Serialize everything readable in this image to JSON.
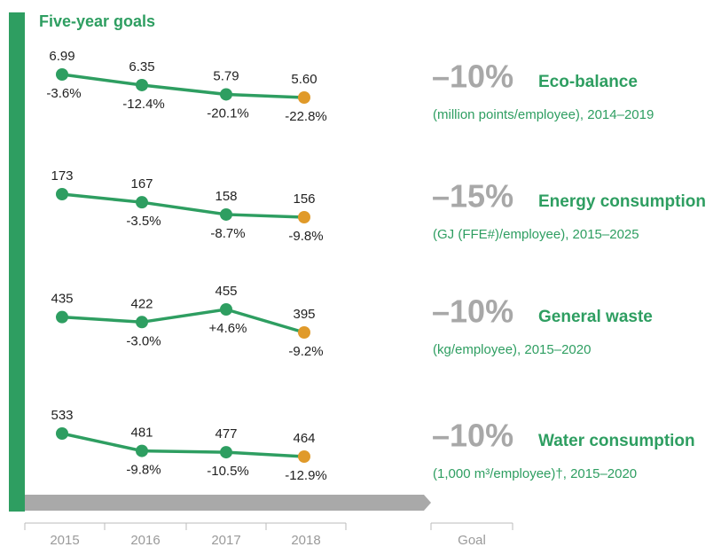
{
  "title": "Five-year goals",
  "categories": [
    2015,
    2016,
    2017,
    2018
  ],
  "goal_label": "Goal",
  "chart_data": [
    {
      "type": "line",
      "title": "Eco-balance",
      "goal": "–10%",
      "subtitle": "(million points/employee), 2014–2019",
      "values": [
        6.99,
        6.35,
        5.79,
        5.6
      ],
      "value_labels": [
        "6.99",
        "6.35",
        "5.79",
        "5.60"
      ],
      "changes": [
        "-3.6%",
        "-12.4%",
        "-20.1%",
        "-22.8%"
      ],
      "color": "#2e9e61",
      "highlight_color": "#e09a2a"
    },
    {
      "type": "line",
      "title": "Energy consumption",
      "goal": "–15%",
      "subtitle": "(GJ (FFE#)/employee), 2015–2025",
      "values": [
        173,
        167,
        158,
        156
      ],
      "changes": [
        "-3.5%",
        "-8.7%",
        "-9.8%"
      ],
      "color": "#2e9e61",
      "highlight_color": "#e09a2a"
    },
    {
      "type": "line",
      "title": "General waste",
      "goal": "–10%",
      "subtitle": "(kg/employee), 2015–2020",
      "values": [
        435,
        422,
        455,
        395
      ],
      "changes": [
        "-3.0%",
        "+4.6%",
        "-9.2%"
      ],
      "color": "#2e9e61",
      "highlight_color": "#e09a2a"
    },
    {
      "type": "line",
      "title": "Water consumption",
      "goal": "–10%",
      "subtitle": "(1,000 m³/employee)†, 2015–2020",
      "values": [
        533,
        481,
        477,
        464
      ],
      "changes": [
        "-9.8%",
        "-10.5%",
        "-12.9%"
      ],
      "color": "#2e9e61",
      "highlight_color": "#e09a2a"
    }
  ]
}
